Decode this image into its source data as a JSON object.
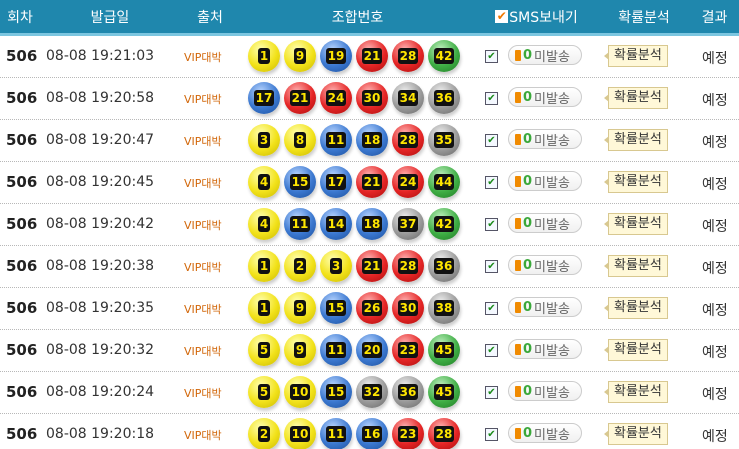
{
  "header": {
    "round": "회차",
    "date": "발급일",
    "source": "출처",
    "numbers": "조합번호",
    "sms": "SMS보내기",
    "analysis": "확률분석",
    "result": "결과"
  },
  "ball_colors": {
    "1-10": "#f2e21a",
    "11-20": "#3b78d0",
    "21-30": "#e52525",
    "31-40": "#9a9a9a",
    "41-45": "#3fae45"
  },
  "rows": [
    {
      "round": "506",
      "date": "08-08 19:21:03",
      "source": "VIP대박",
      "numbers": [
        1,
        9,
        19,
        21,
        28,
        42
      ],
      "sms_count": "0",
      "sms_label": "미발송",
      "analysis": "확률분석",
      "result": "예정",
      "checked": true
    },
    {
      "round": "506",
      "date": "08-08 19:20:58",
      "source": "VIP대박",
      "numbers": [
        17,
        21,
        24,
        30,
        34,
        36
      ],
      "sms_count": "0",
      "sms_label": "미발송",
      "analysis": "확률분석",
      "result": "예정",
      "checked": true
    },
    {
      "round": "506",
      "date": "08-08 19:20:47",
      "source": "VIP대박",
      "numbers": [
        3,
        8,
        11,
        18,
        28,
        35
      ],
      "sms_count": "0",
      "sms_label": "미발송",
      "analysis": "확률분석",
      "result": "예정",
      "checked": true
    },
    {
      "round": "506",
      "date": "08-08 19:20:45",
      "source": "VIP대박",
      "numbers": [
        4,
        15,
        17,
        21,
        24,
        44
      ],
      "sms_count": "0",
      "sms_label": "미발송",
      "analysis": "확률분석",
      "result": "예정",
      "checked": true
    },
    {
      "round": "506",
      "date": "08-08 19:20:42",
      "source": "VIP대박",
      "numbers": [
        4,
        11,
        14,
        18,
        37,
        42
      ],
      "sms_count": "0",
      "sms_label": "미발송",
      "analysis": "확률분석",
      "result": "예정",
      "checked": true
    },
    {
      "round": "506",
      "date": "08-08 19:20:38",
      "source": "VIP대박",
      "numbers": [
        1,
        2,
        3,
        21,
        28,
        36
      ],
      "sms_count": "0",
      "sms_label": "미발송",
      "analysis": "확률분석",
      "result": "예정",
      "checked": true
    },
    {
      "round": "506",
      "date": "08-08 19:20:35",
      "source": "VIP대박",
      "numbers": [
        1,
        9,
        15,
        26,
        30,
        38
      ],
      "sms_count": "0",
      "sms_label": "미발송",
      "analysis": "확률분석",
      "result": "예정",
      "checked": true
    },
    {
      "round": "506",
      "date": "08-08 19:20:32",
      "source": "VIP대박",
      "numbers": [
        5,
        9,
        11,
        20,
        23,
        45
      ],
      "sms_count": "0",
      "sms_label": "미발송",
      "analysis": "확률분석",
      "result": "예정",
      "checked": true
    },
    {
      "round": "506",
      "date": "08-08 19:20:24",
      "source": "VIP대박",
      "numbers": [
        5,
        10,
        15,
        32,
        36,
        45
      ],
      "sms_count": "0",
      "sms_label": "미발송",
      "analysis": "확률분석",
      "result": "예정",
      "checked": true
    },
    {
      "round": "506",
      "date": "08-08 19:20:18",
      "source": "VIP대박",
      "numbers": [
        2,
        10,
        11,
        16,
        23,
        28
      ],
      "sms_count": "0",
      "sms_label": "미발송",
      "analysis": "확률분석",
      "result": "예정",
      "checked": true
    }
  ]
}
